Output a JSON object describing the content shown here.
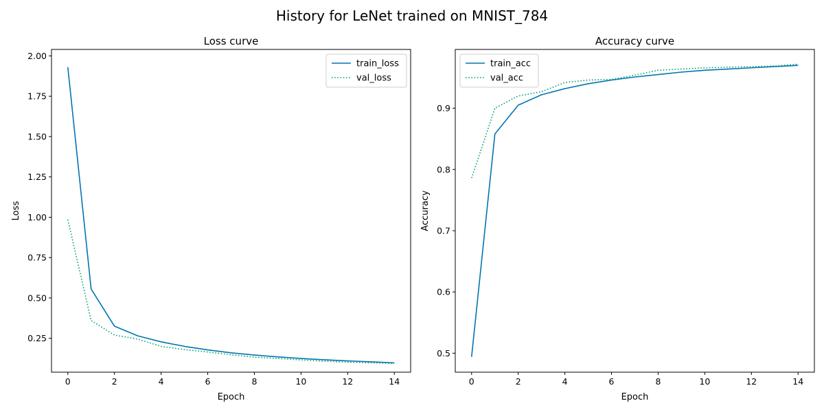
{
  "figure": {
    "suptitle": "History for LeNet trained on MNIST_784"
  },
  "chart_data": [
    {
      "type": "line",
      "title": "Loss curve",
      "xlabel": "Epoch",
      "ylabel": "Loss",
      "xlim": [
        -0.7,
        14.7
      ],
      "ylim": [
        0.04,
        2.04
      ],
      "xticks": [
        0,
        2,
        4,
        6,
        8,
        10,
        12,
        14
      ],
      "yticks": [
        0.25,
        0.5,
        0.75,
        1.0,
        1.25,
        1.5,
        1.75,
        2.0
      ],
      "ytick_labels": [
        "0.25",
        "0.50",
        "0.75",
        "1.00",
        "1.25",
        "1.50",
        "1.75",
        "2.00"
      ],
      "grid": false,
      "legend": "top-right",
      "x": [
        0,
        1,
        2,
        3,
        4,
        5,
        6,
        7,
        8,
        9,
        10,
        11,
        12,
        13,
        14
      ],
      "series": [
        {
          "name": "train_loss",
          "style": "solid",
          "color": "#0173b2",
          "values": [
            1.93,
            0.555,
            0.325,
            0.265,
            0.228,
            0.2,
            0.178,
            0.16,
            0.146,
            0.135,
            0.125,
            0.117,
            0.11,
            0.104,
            0.098
          ]
        },
        {
          "name": "val_loss",
          "style": "dotted",
          "color": "#029e73",
          "values": [
            0.985,
            0.36,
            0.27,
            0.245,
            0.2,
            0.18,
            0.165,
            0.148,
            0.133,
            0.125,
            0.116,
            0.108,
            0.102,
            0.098,
            0.094
          ]
        }
      ]
    },
    {
      "type": "line",
      "title": "Accuracy curve",
      "xlabel": "Epoch",
      "ylabel": "Accuracy",
      "xlim": [
        -0.7,
        14.7
      ],
      "ylim": [
        0.469,
        0.996
      ],
      "xticks": [
        0,
        2,
        4,
        6,
        8,
        10,
        12,
        14
      ],
      "yticks": [
        0.5,
        0.6,
        0.7,
        0.8,
        0.9
      ],
      "ytick_labels": [
        "0.5",
        "0.6",
        "0.7",
        "0.8",
        "0.9"
      ],
      "grid": false,
      "legend": "top-left",
      "x": [
        0,
        1,
        2,
        3,
        4,
        5,
        6,
        7,
        8,
        9,
        10,
        11,
        12,
        13,
        14
      ],
      "series": [
        {
          "name": "train_acc",
          "style": "solid",
          "color": "#0173b2",
          "values": [
            0.494,
            0.858,
            0.905,
            0.922,
            0.932,
            0.94,
            0.946,
            0.951,
            0.955,
            0.959,
            0.962,
            0.964,
            0.966,
            0.968,
            0.97
          ]
        },
        {
          "name": "val_acc",
          "style": "dotted",
          "color": "#029e73",
          "values": [
            0.786,
            0.9,
            0.92,
            0.927,
            0.942,
            0.946,
            0.947,
            0.954,
            0.962,
            0.964,
            0.966,
            0.967,
            0.968,
            0.969,
            0.972
          ]
        }
      ]
    }
  ]
}
